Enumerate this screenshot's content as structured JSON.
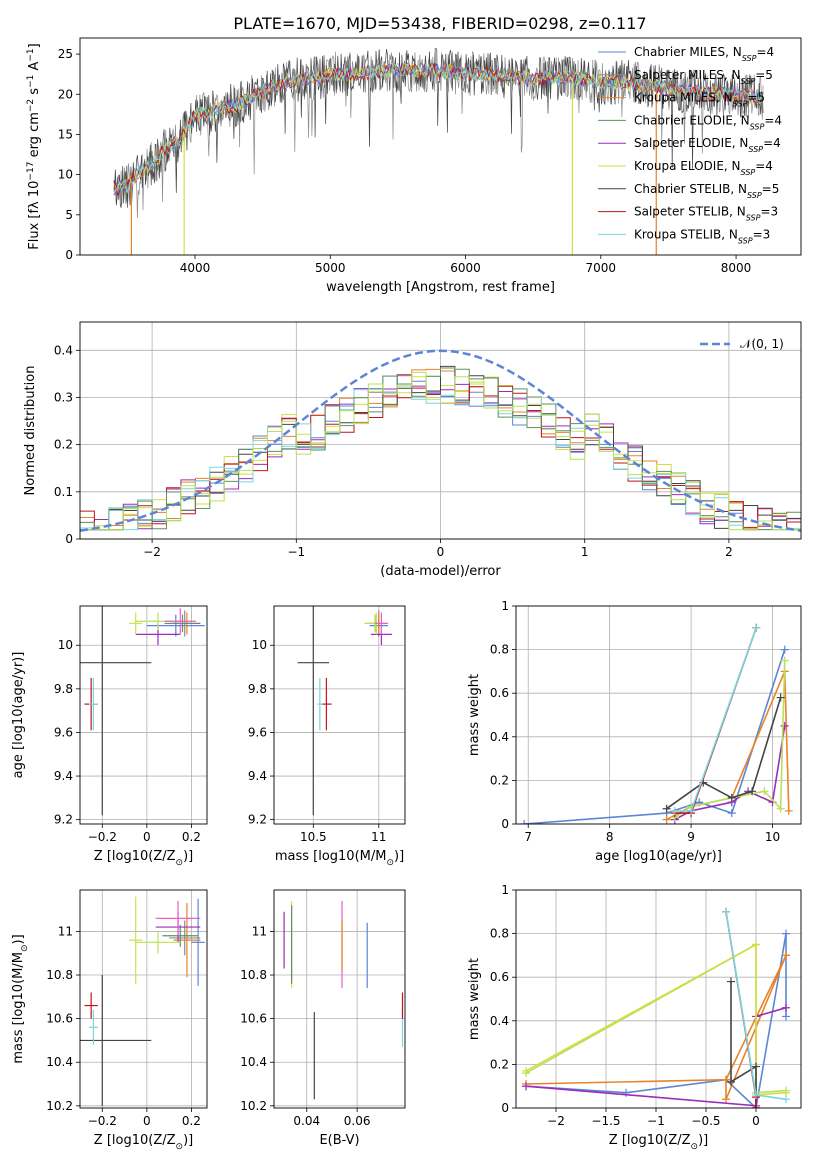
{
  "figure": {
    "title": "PLATE=1670, MJD=53438, FIBERID=0298, z=0.117"
  },
  "colors": {
    "chabrier_miles": "#5b86d6",
    "salpeter_miles": "#8c8c8c",
    "kroupa_miles": "#e8832a",
    "chabrier_elodie": "#5f8f62",
    "salpeter_elodie": "#9b2db8",
    "kroupa_elodie": "#d4de45",
    "chabrier_stelib": "#444444",
    "salpeter_stelib": "#c0151f",
    "kroupa_stelib": "#7ad6df",
    "light_green": "#b8e05a",
    "pink": "#e85fd0",
    "gaussian": "#5b86d6"
  },
  "chart_data": [
    {
      "id": "spectrum",
      "type": "line",
      "xlabel": "wavelength [Angstrom, rest frame]",
      "ylabel": "Flux [f_λ 10^-17 erg cm^-2 s^-1 A^-1]",
      "xlim": [
        3150,
        8480
      ],
      "ylim": [
        0,
        27
      ],
      "xticks": [
        4000,
        5000,
        6000,
        7000,
        8000
      ],
      "yticks": [
        0,
        5,
        10,
        15,
        20,
        25
      ],
      "grid": false,
      "legend_position": "right",
      "legend": [
        {
          "label": "Chabrier MILES, N_SSP=4",
          "color_key": "chabrier_miles"
        },
        {
          "label": "Salpeter MILES, N_SSP=5",
          "color_key": "salpeter_miles"
        },
        {
          "label": "Kroupa MILES, N_SSP=5",
          "color_key": "kroupa_miles"
        },
        {
          "label": "Chabrier ELODIE, N_SSP=4",
          "color_key": "chabrier_elodie"
        },
        {
          "label": "Salpeter ELODIE, N_SSP=4",
          "color_key": "salpeter_elodie"
        },
        {
          "label": "Kroupa ELODIE, N_SSP=4",
          "color_key": "kroupa_elodie"
        },
        {
          "label": "Chabrier STELIB, N_SSP=5",
          "color_key": "chabrier_stelib"
        },
        {
          "label": "Salpeter STELIB, N_SSP=3",
          "color_key": "salpeter_stelib"
        },
        {
          "label": "Kroupa STELIB, N_SSP=3",
          "color_key": "kroupa_stelib"
        }
      ],
      "continuum": {
        "x": [
          3400,
          3500,
          3600,
          3700,
          3800,
          3900,
          4000,
          4100,
          4200,
          4300,
          4400,
          4500,
          4600,
          4700,
          4800,
          4900,
          5000,
          5200,
          5400,
          5600,
          5800,
          6000,
          6200,
          6400,
          6600,
          6800,
          7000,
          7200,
          7400,
          7600,
          7800,
          8000,
          8200
        ],
        "y": [
          8.2,
          8.6,
          10.5,
          11.5,
          13.5,
          14.5,
          17.5,
          17.5,
          18.5,
          18.5,
          19.5,
          20.5,
          21.0,
          21.5,
          22.0,
          22.0,
          22.5,
          22.5,
          23.0,
          23.0,
          23.0,
          22.5,
          22.5,
          22.0,
          22.0,
          22.0,
          21.5,
          21.5,
          21.0,
          20.5,
          20.0,
          20.0,
          19.5
        ]
      },
      "drop_lines": [
        {
          "x": 3530,
          "color_key": "kroupa_miles"
        },
        {
          "x": 3920,
          "color_key": "kroupa_elodie"
        },
        {
          "x": 6790,
          "color_key": "kroupa_elodie"
        },
        {
          "x": 7410,
          "color_key": "kroupa_miles"
        }
      ]
    },
    {
      "id": "residuals",
      "type": "histogram",
      "xlabel": "(data-model)/error",
      "ylabel": "Normed distribution",
      "xlim": [
        -2.5,
        2.5
      ],
      "ylim": [
        0,
        0.46
      ],
      "xticks": [
        -2,
        -1,
        0,
        1,
        2
      ],
      "yticks": [
        0.0,
        0.1,
        0.2,
        0.3,
        0.4
      ],
      "grid": true,
      "legend_position": "top-right",
      "gaussian_label": "𝒩(0, 1)",
      "bin_width": 0.1
    },
    {
      "id": "age_vs_Z",
      "type": "scatter",
      "xlabel": "Z [log10(Z/Z_sun)]",
      "ylabel": "age [log10(age/yr)]",
      "xlim": [
        -0.3,
        0.27
      ],
      "ylim": [
        9.18,
        10.18
      ],
      "xticks": [
        -0.2,
        0.0,
        0.2
      ],
      "yticks": [
        9.2,
        9.4,
        9.6,
        9.8,
        10.0
      ],
      "grid": true,
      "points": [
        {
          "x": 0.13,
          "y": 10.09,
          "xerr": 0.13,
          "yerr": 0.05,
          "color_key": "chabrier_miles"
        },
        {
          "x": 0.17,
          "y": 10.1,
          "xerr": 0.07,
          "yerr": 0.06,
          "color_key": "salpeter_miles"
        },
        {
          "x": 0.18,
          "y": 10.1,
          "xerr": 0.06,
          "yerr": 0.05,
          "color_key": "kroupa_miles"
        },
        {
          "x": 0.16,
          "y": 10.1,
          "xerr": 0.08,
          "yerr": 0.04,
          "color_key": "chabrier_elodie"
        },
        {
          "x": 0.05,
          "y": 10.05,
          "xerr": 0.1,
          "yerr": 0.05,
          "color_key": "salpeter_elodie"
        },
        {
          "x": -0.05,
          "y": 10.1,
          "xerr": 0.03,
          "yerr": 0.05,
          "color_key": "kroupa_elodie"
        },
        {
          "x": -0.2,
          "y": 9.92,
          "xerr": 0.22,
          "yerr": 0.7,
          "color_key": "chabrier_stelib"
        },
        {
          "x": -0.25,
          "y": 9.73,
          "xerr": 0.03,
          "yerr": 0.12,
          "color_key": "salpeter_stelib"
        },
        {
          "x": -0.24,
          "y": 9.73,
          "xerr": 0.02,
          "yerr": 0.12,
          "color_key": "kroupa_stelib"
        },
        {
          "x": 0.05,
          "y": 10.11,
          "xerr": 0.1,
          "yerr": 0.04,
          "color_key": "light_green"
        },
        {
          "x": 0.15,
          "y": 10.11,
          "xerr": 0.07,
          "yerr": 0.06,
          "color_key": "pink"
        }
      ]
    },
    {
      "id": "age_vs_mass",
      "type": "scatter",
      "xlabel": "mass [log10(M/M_sun)]",
      "ylabel": "",
      "xlim": [
        10.2,
        11.2
      ],
      "ylim": [
        9.18,
        10.18
      ],
      "xticks": [
        10.5,
        11.0
      ],
      "yticks": [
        9.2,
        9.4,
        9.6,
        9.8,
        10.0
      ],
      "grid": true,
      "points": [
        {
          "x": 11.0,
          "y": 10.09,
          "xerr": 0.07,
          "yerr": 0.05,
          "color_key": "chabrier_miles"
        },
        {
          "x": 11.0,
          "y": 10.1,
          "xerr": 0.07,
          "yerr": 0.06,
          "color_key": "salpeter_miles"
        },
        {
          "x": 11.0,
          "y": 10.1,
          "xerr": 0.06,
          "yerr": 0.05,
          "color_key": "kroupa_miles"
        },
        {
          "x": 10.98,
          "y": 10.1,
          "xerr": 0.08,
          "yerr": 0.04,
          "color_key": "chabrier_elodie"
        },
        {
          "x": 11.02,
          "y": 10.05,
          "xerr": 0.08,
          "yerr": 0.05,
          "color_key": "salpeter_elodie"
        },
        {
          "x": 10.98,
          "y": 10.1,
          "xerr": 0.06,
          "yerr": 0.05,
          "color_key": "kroupa_elodie"
        },
        {
          "x": 10.5,
          "y": 9.92,
          "xerr": 0.12,
          "yerr": 0.7,
          "color_key": "chabrier_stelib"
        },
        {
          "x": 10.6,
          "y": 9.73,
          "xerr": 0.04,
          "yerr": 0.12,
          "color_key": "salpeter_stelib"
        },
        {
          "x": 10.55,
          "y": 9.73,
          "xerr": 0.02,
          "yerr": 0.12,
          "color_key": "kroupa_stelib"
        },
        {
          "x": 10.97,
          "y": 10.1,
          "xerr": 0.08,
          "yerr": 0.04,
          "color_key": "light_green"
        },
        {
          "x": 11.02,
          "y": 10.1,
          "xerr": 0.05,
          "yerr": 0.05,
          "color_key": "pink"
        }
      ]
    },
    {
      "id": "mass_weight_vs_age",
      "type": "line",
      "xlabel": "age [log10(age/yr)]",
      "ylabel": "mass weight",
      "xlim": [
        6.85,
        10.35
      ],
      "ylim": [
        0,
        1
      ],
      "xticks": [
        7,
        8,
        9,
        10
      ],
      "yticks": [
        0.0,
        0.2,
        0.4,
        0.6,
        0.8,
        1.0
      ],
      "grid": true,
      "series": [
        {
          "color_key": "chabrier_miles",
          "x": [
            6.95,
            8.7,
            9.1,
            9.5,
            10.15
          ],
          "y": [
            0.0,
            0.05,
            0.1,
            0.05,
            0.8
          ]
        },
        {
          "color_key": "kroupa_miles",
          "x": [
            8.7,
            9.0,
            9.5,
            10.15,
            10.2
          ],
          "y": [
            0.02,
            0.08,
            0.12,
            0.7,
            0.06
          ]
        },
        {
          "color_key": "salpeter_elodie",
          "x": [
            8.8,
            9.0,
            9.5,
            9.7,
            10.0,
            10.15
          ],
          "y": [
            0.02,
            0.06,
            0.1,
            0.15,
            0.1,
            0.45
          ]
        },
        {
          "color_key": "light_green",
          "x": [
            8.8,
            9.0,
            9.5,
            9.9,
            10.1,
            10.15
          ],
          "y": [
            0.03,
            0.08,
            0.12,
            0.15,
            0.07,
            0.75
          ]
        },
        {
          "color_key": "chabrier_stelib",
          "x": [
            8.7,
            9.15,
            9.5,
            9.75,
            10.1
          ],
          "y": [
            0.07,
            0.19,
            0.12,
            0.15,
            0.58
          ]
        },
        {
          "color_key": "salpeter_stelib",
          "x": [
            8.8,
            9.0,
            9.8
          ],
          "y": [
            0.05,
            0.05,
            0.9
          ]
        },
        {
          "color_key": "kroupa_stelib",
          "x": [
            8.8,
            9.0,
            9.8
          ],
          "y": [
            0.06,
            0.06,
            0.9
          ]
        }
      ]
    },
    {
      "id": "mass_vs_Z",
      "type": "scatter",
      "xlabel": "Z [log10(Z/Z_sun)]",
      "ylabel": "mass [log10(M/M_sun)]",
      "xlim": [
        -0.3,
        0.27
      ],
      "ylim": [
        10.19,
        11.19
      ],
      "xticks": [
        -0.2,
        0.0,
        0.2
      ],
      "yticks": [
        10.2,
        10.4,
        10.6,
        10.8,
        11.0
      ],
      "grid": true,
      "points": [
        {
          "x": 0.23,
          "y": 10.95,
          "xerr": 0.03,
          "yerr": 0.2,
          "color_key": "chabrier_miles"
        },
        {
          "x": 0.17,
          "y": 10.97,
          "xerr": 0.07,
          "yerr": 0.08,
          "color_key": "salpeter_miles"
        },
        {
          "x": 0.18,
          "y": 10.96,
          "xerr": 0.06,
          "yerr": 0.17,
          "color_key": "kroupa_miles"
        },
        {
          "x": 0.15,
          "y": 10.98,
          "xerr": 0.08,
          "yerr": 0.05,
          "color_key": "chabrier_elodie"
        },
        {
          "x": 0.14,
          "y": 11.02,
          "xerr": 0.1,
          "yerr": 0.07,
          "color_key": "salpeter_elodie"
        },
        {
          "x": -0.05,
          "y": 10.96,
          "xerr": 0.03,
          "yerr": 0.2,
          "color_key": "kroupa_elodie"
        },
        {
          "x": -0.2,
          "y": 10.5,
          "xerr": 0.22,
          "yerr": 0.3,
          "color_key": "chabrier_stelib"
        },
        {
          "x": -0.25,
          "y": 10.66,
          "xerr": 0.03,
          "yerr": 0.06,
          "color_key": "salpeter_stelib"
        },
        {
          "x": -0.24,
          "y": 10.56,
          "xerr": 0.02,
          "yerr": 0.08,
          "color_key": "kroupa_stelib"
        },
        {
          "x": 0.05,
          "y": 10.95,
          "xerr": 0.1,
          "yerr": 0.05,
          "color_key": "light_green"
        },
        {
          "x": 0.14,
          "y": 11.06,
          "xerr": 0.1,
          "yerr": 0.08,
          "color_key": "pink"
        }
      ]
    },
    {
      "id": "mass_vs_ebv",
      "type": "scatter",
      "xlabel": "E(B-V)",
      "ylabel": "",
      "xlim": [
        0.027,
        0.079
      ],
      "ylim": [
        10.19,
        11.19
      ],
      "xticks": [
        0.04,
        0.06
      ],
      "yticks": [
        10.2,
        10.4,
        10.6,
        10.8,
        11.0
      ],
      "grid": true,
      "points": [
        {
          "x": 0.064,
          "y": 10.89,
          "xerr": 0,
          "yerr": 0.15,
          "color_key": "chabrier_miles"
        },
        {
          "x": 0.078,
          "y": 10.56,
          "xerr": 0,
          "yerr": 0.09,
          "color_key": "kroupa_stelib"
        },
        {
          "x": 0.054,
          "y": 10.94,
          "xerr": 0,
          "yerr": 0.2,
          "color_key": "pink"
        },
        {
          "x": 0.054,
          "y": 10.94,
          "xerr": 0,
          "yerr": 0.12,
          "color_key": "kroupa_miles"
        },
        {
          "x": 0.031,
          "y": 10.96,
          "xerr": 0,
          "yerr": 0.13,
          "color_key": "salpeter_elodie"
        },
        {
          "x": 0.034,
          "y": 10.94,
          "xerr": 0,
          "yerr": 0.2,
          "color_key": "kroupa_elodie"
        },
        {
          "x": 0.034,
          "y": 10.94,
          "xerr": 0,
          "yerr": 0.18,
          "color_key": "chabrier_elodie"
        },
        {
          "x": 0.043,
          "y": 10.43,
          "xerr": 0,
          "yerr": 0.2,
          "color_key": "chabrier_stelib"
        },
        {
          "x": 0.078,
          "y": 10.66,
          "xerr": 0,
          "yerr": 0.06,
          "color_key": "salpeter_stelib"
        }
      ]
    },
    {
      "id": "mass_weight_vs_Z",
      "type": "line",
      "xlabel": "Z [log10(Z/Z_sun)]",
      "ylabel": "mass weight",
      "xlim": [
        -2.4,
        0.45
      ],
      "ylim": [
        0,
        1
      ],
      "xticks": [
        -2.0,
        -1.5,
        -1.0,
        -0.5,
        0.0
      ],
      "yticks": [
        0.0,
        0.2,
        0.4,
        0.6,
        0.8,
        1.0
      ],
      "grid": true,
      "series": [
        {
          "color_key": "chabrier_miles",
          "x": [
            -2.3,
            -1.3,
            -0.3,
            0.0,
            0.3,
            0.3
          ],
          "y": [
            0.1,
            0.07,
            0.13,
            0.0,
            0.8,
            0.42
          ]
        },
        {
          "color_key": "kroupa_miles",
          "x": [
            -2.3,
            -0.3,
            -0.3,
            0.3,
            0.3,
            -0.3
          ],
          "y": [
            0.11,
            0.13,
            0.04,
            0.7,
            0.7,
            0.13
          ]
        },
        {
          "color_key": "salpeter_elodie",
          "x": [
            -2.3,
            0.0,
            0.0,
            0.3
          ],
          "y": [
            0.1,
            0.01,
            0.42,
            0.46
          ]
        },
        {
          "color_key": "light_green",
          "x": [
            -2.3,
            0.0,
            0.0,
            0.3
          ],
          "y": [
            0.16,
            0.75,
            0.07,
            0.08
          ]
        },
        {
          "color_key": "kroupa_elodie",
          "x": [
            -2.3,
            0.0,
            0.0,
            0.3
          ],
          "y": [
            0.17,
            0.75,
            0.06,
            0.07
          ]
        },
        {
          "color_key": "chabrier_stelib",
          "x": [
            -0.25,
            -0.25,
            0.0,
            0.0
          ],
          "y": [
            0.58,
            0.12,
            0.19,
            0.0
          ]
        },
        {
          "color_key": "salpeter_stelib",
          "x": [
            -0.3,
            0.0,
            0.0
          ],
          "y": [
            0.9,
            0.05,
            0.0
          ]
        },
        {
          "color_key": "kroupa_stelib",
          "x": [
            -0.3,
            0.0,
            0.3
          ],
          "y": [
            0.9,
            0.06,
            0.04
          ]
        }
      ]
    }
  ]
}
